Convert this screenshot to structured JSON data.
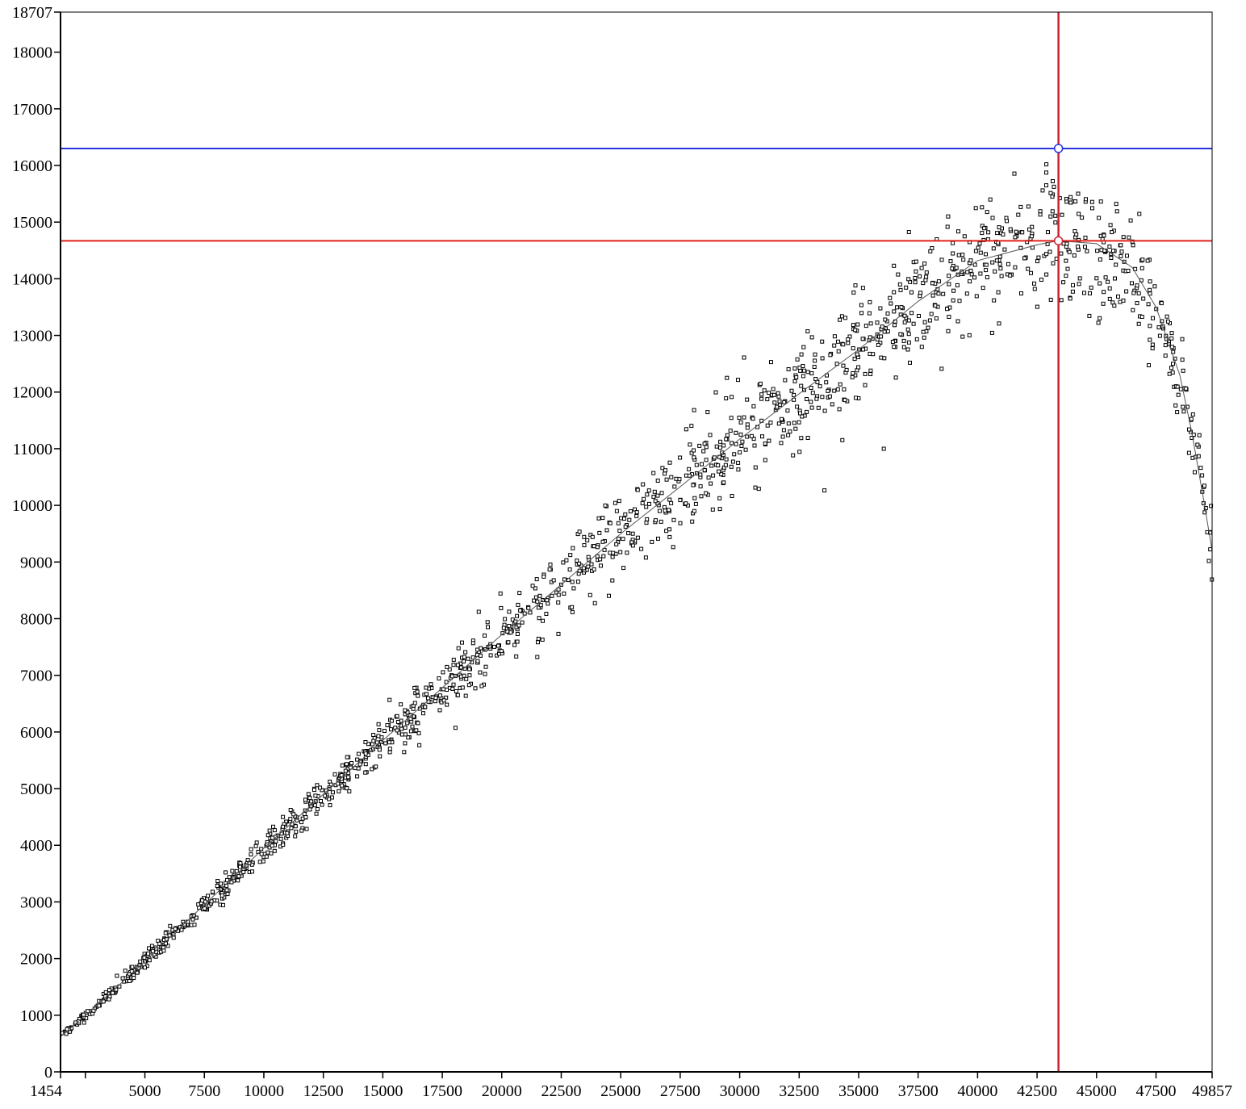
{
  "chart_data": {
    "type": "scatter",
    "title": "",
    "xlabel": "",
    "ylabel": "",
    "xlim": [
      1454,
      49857
    ],
    "ylim": [
      0,
      18707
    ],
    "x_ticks": [
      1454,
      2500,
      5000,
      7500,
      10000,
      12500,
      15000,
      17500,
      20000,
      22500,
      25000,
      27500,
      30000,
      32500,
      35000,
      37500,
      40000,
      42500,
      45000,
      47500,
      49857
    ],
    "x_tick_labels": [
      "1454",
      "",
      "5000",
      "7500",
      "10000",
      "12500",
      "15000",
      "17500",
      "20000",
      "22500",
      "25000",
      "27500",
      "30000",
      "32500",
      "35000",
      "37500",
      "40000",
      "42500",
      "45000",
      "47500",
      "49857"
    ],
    "y_ticks": [
      0,
      1000,
      2000,
      3000,
      4000,
      5000,
      6000,
      7000,
      8000,
      9000,
      10000,
      11000,
      12000,
      13000,
      14000,
      15000,
      16000,
      17000,
      18000,
      18707
    ],
    "y_tick_labels": [
      "0",
      "1000",
      "2000",
      "3000",
      "4000",
      "5000",
      "6000",
      "7000",
      "8000",
      "9000",
      "10000",
      "11000",
      "12000",
      "13000",
      "14000",
      "15000",
      "16000",
      "17000",
      "18000",
      "18707"
    ],
    "grid": false,
    "legend": "none",
    "fit_line": {
      "x": [
        1454,
        3000,
        5000,
        7500,
        10000,
        12500,
        15000,
        17500,
        20000,
        22500,
        25000,
        27500,
        30000,
        32500,
        35000,
        37500,
        40000,
        42500,
        43400,
        45000,
        46500,
        47500,
        48500,
        49000,
        49500,
        49857
      ],
      "y": [
        620,
        1180,
        1950,
        2950,
        3950,
        4900,
        5850,
        6780,
        7720,
        8600,
        9500,
        10330,
        11170,
        11970,
        12750,
        13600,
        14320,
        14600,
        14670,
        14620,
        14200,
        13500,
        12300,
        11300,
        10100,
        9200
      ]
    },
    "scatter_band": [
      {
        "x": 1454,
        "y": 620,
        "spread": 40
      },
      {
        "x": 3000,
        "y": 1180,
        "spread": 80
      },
      {
        "x": 5000,
        "y": 1950,
        "spread": 120
      },
      {
        "x": 7500,
        "y": 2950,
        "spread": 160
      },
      {
        "x": 10000,
        "y": 3950,
        "spread": 220
      },
      {
        "x": 12500,
        "y": 4900,
        "spread": 260
      },
      {
        "x": 15000,
        "y": 5850,
        "spread": 320
      },
      {
        "x": 17500,
        "y": 6780,
        "spread": 380
      },
      {
        "x": 20000,
        "y": 7720,
        "spread": 450
      },
      {
        "x": 22500,
        "y": 8600,
        "spread": 520
      },
      {
        "x": 25000,
        "y": 9500,
        "spread": 580
      },
      {
        "x": 27500,
        "y": 10330,
        "spread": 650
      },
      {
        "x": 30000,
        "y": 11170,
        "spread": 720
      },
      {
        "x": 32500,
        "y": 11970,
        "spread": 780
      },
      {
        "x": 35000,
        "y": 12750,
        "spread": 850
      },
      {
        "x": 37500,
        "y": 13600,
        "spread": 900
      },
      {
        "x": 40000,
        "y": 14320,
        "spread": 950
      },
      {
        "x": 42500,
        "y": 14600,
        "spread": 950
      },
      {
        "x": 45000,
        "y": 14620,
        "spread": 900
      },
      {
        "x": 47000,
        "y": 13900,
        "spread": 800
      },
      {
        "x": 48500,
        "y": 12300,
        "spread": 600
      },
      {
        "x": 49500,
        "y": 10400,
        "spread": 500
      },
      {
        "x": 49857,
        "y": 9200,
        "spread": 500
      }
    ],
    "scatter_count": 1600,
    "reference_lines": {
      "vertical_x": 43400,
      "horizontal_blue_y": 16300,
      "horizontal_red_y": 14670
    },
    "markers": [
      {
        "x": 43400,
        "y": 16300,
        "color": "#2233dd"
      },
      {
        "x": 43400,
        "y": 14670,
        "color": "#cc2233"
      }
    ],
    "colors": {
      "points": "#000000",
      "fit_line": "#555555",
      "vertical_line": "#cc2233",
      "horizontal_red": "#e0201f",
      "horizontal_blue": "#2233dd",
      "axes": "#000000"
    }
  }
}
